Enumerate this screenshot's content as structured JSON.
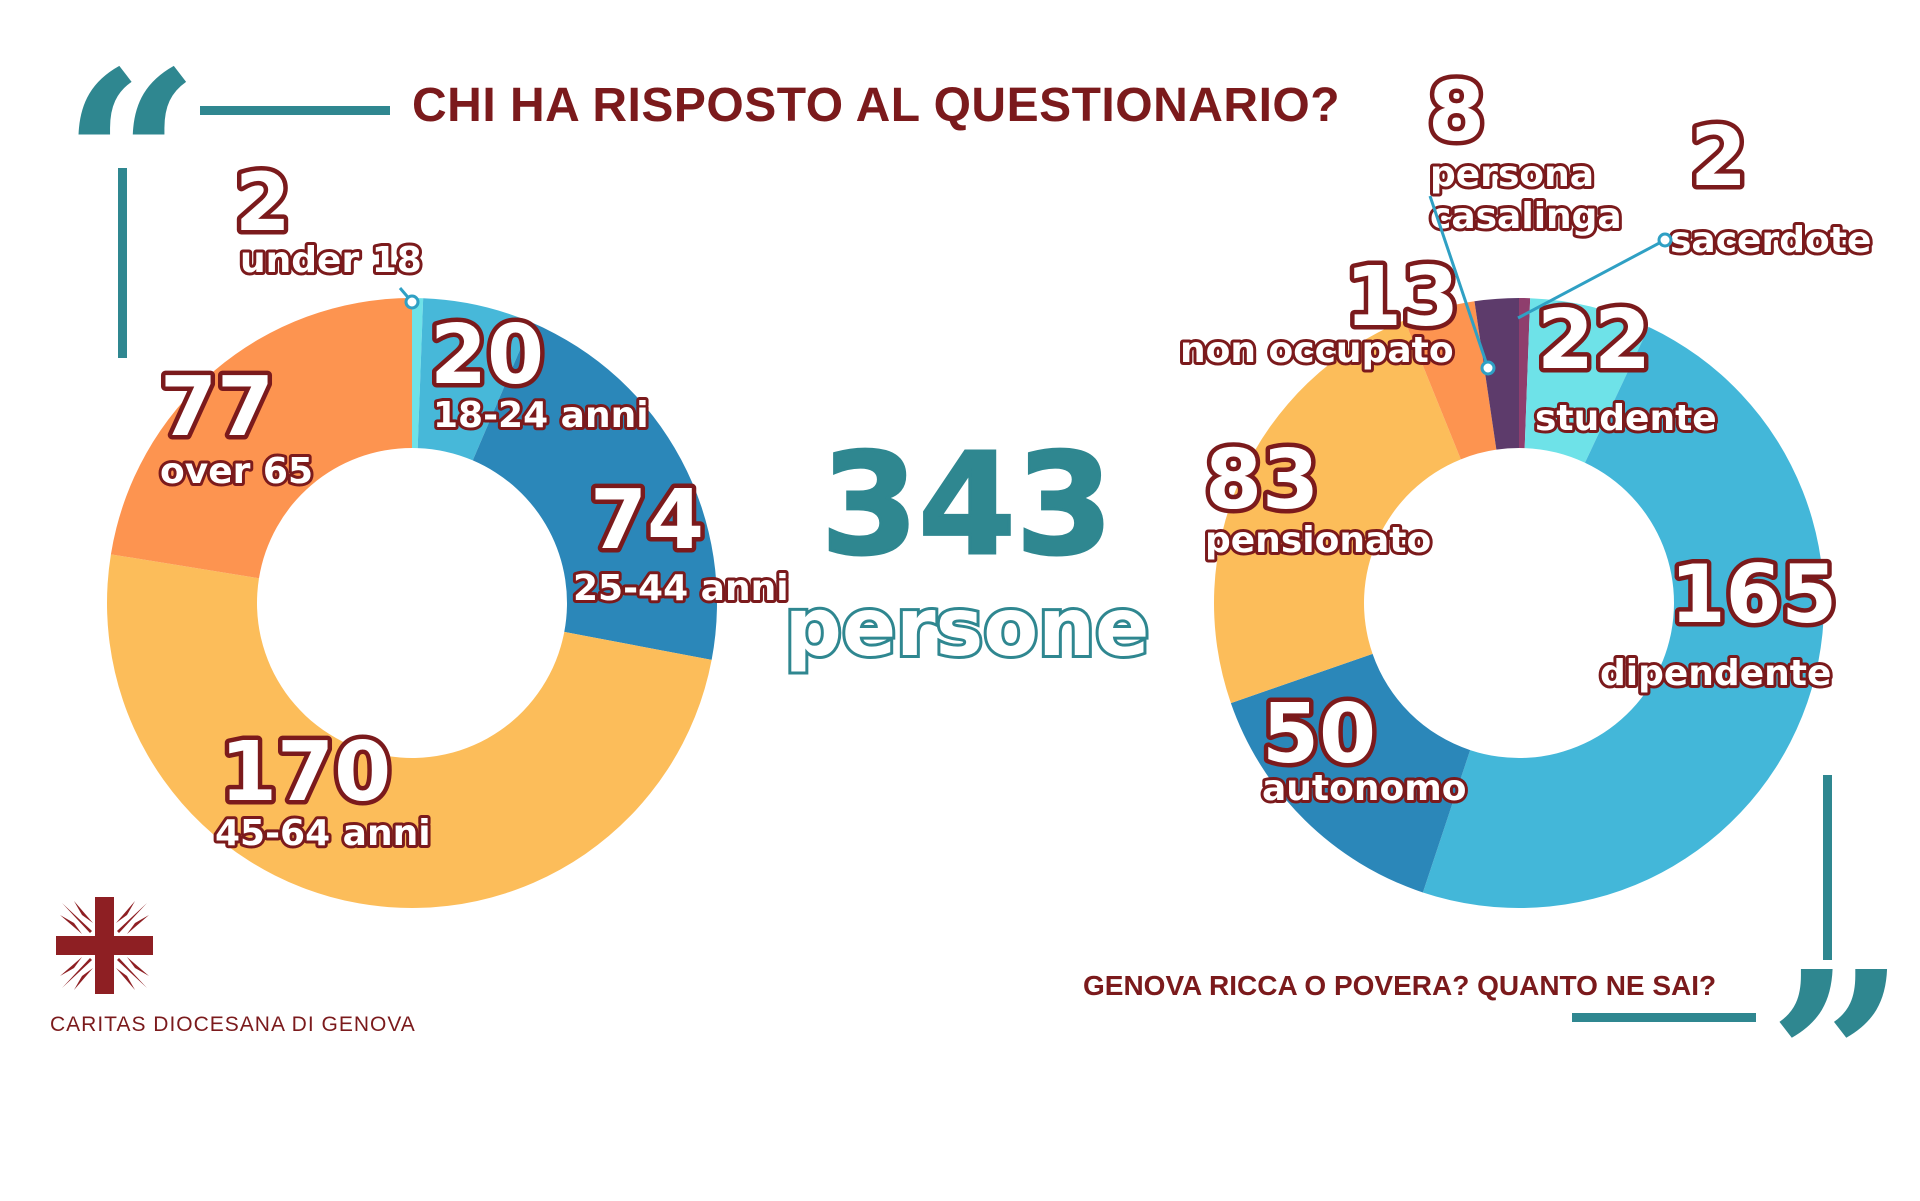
{
  "title": "CHI HA RISPOSTO AL QUESTIONARIO?",
  "subtitle": "GENOVA RICCA O POVERA? QUANTO NE SAI?",
  "organization": "CARITAS DIOCESANA DI GENOVA",
  "total": {
    "value": "343",
    "label": "persone"
  },
  "colors": {
    "brand_red": "#7b1a1c",
    "teal": "#2f8790"
  },
  "chart_data": [
    {
      "type": "pie",
      "slices": [
        {
          "label": "under 18",
          "value": 2,
          "value_label": "2",
          "color": "#6ee2e8"
        },
        {
          "label": "18-24 anni",
          "value": 20,
          "value_label": "20",
          "color": "#47b8d9"
        },
        {
          "label": "25-44 anni",
          "value": 74,
          "value_label": "74",
          "color": "#2b87b9"
        },
        {
          "label": "45-64 anni",
          "value": 170,
          "value_label": "170",
          "color": "#fcbd5a"
        },
        {
          "label": "over 65",
          "value": 77,
          "value_label": "77",
          "color": "#fd9450"
        }
      ]
    },
    {
      "type": "pie",
      "slices": [
        {
          "label": "sacerdote",
          "value": 2,
          "value_label": "2",
          "color": "#8f3e6d"
        },
        {
          "label": "studente",
          "value": 22,
          "value_label": "22",
          "color": "#6ee2e8"
        },
        {
          "label": "dipendente",
          "value": 165,
          "value_label": "165",
          "color": "#43b7d9"
        },
        {
          "label": "autonomo",
          "value": 50,
          "value_label": "50",
          "color": "#2b87b9"
        },
        {
          "label": "pensionato",
          "value": 83,
          "value_label": "83",
          "color": "#fcbd5a"
        },
        {
          "label": "non occupato",
          "value": 13,
          "value_label": "13",
          "color": "#fd9450"
        },
        {
          "label": "persona casalinga",
          "value": 8,
          "value_label": "8",
          "color": "#5d3b6b"
        }
      ]
    }
  ]
}
